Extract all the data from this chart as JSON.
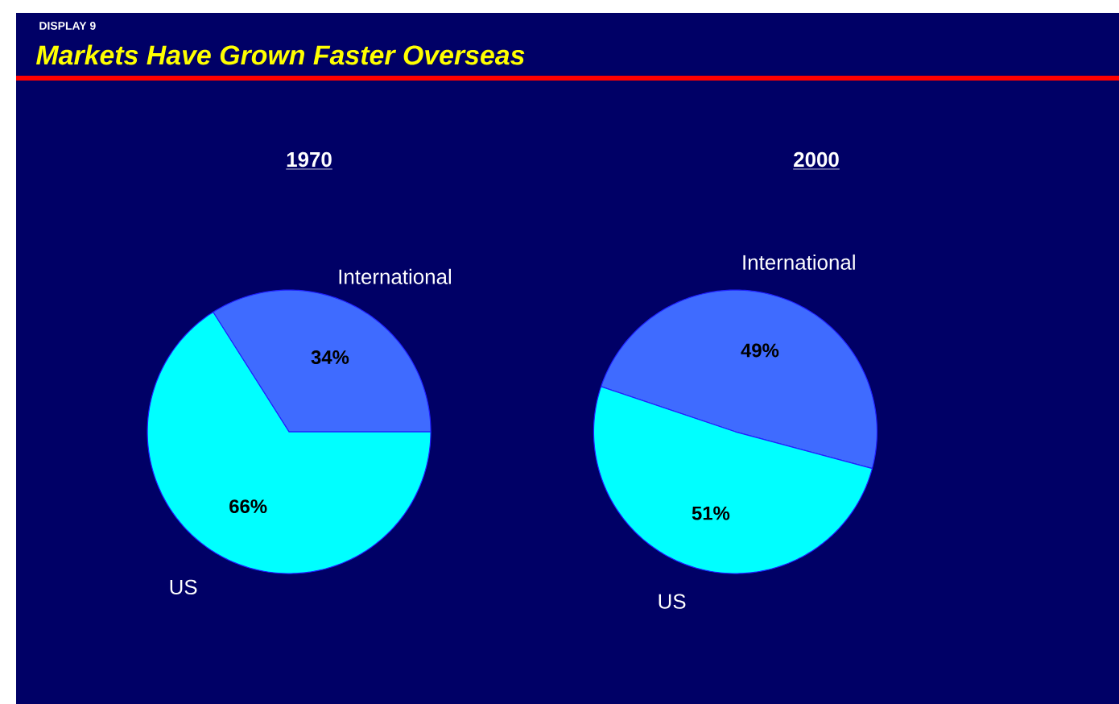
{
  "chart_data": [
    {
      "type": "pie",
      "title": "1970",
      "annotations": [
        "DISPLAY 9",
        "Markets Have Grown Faster Overseas"
      ],
      "categories": [
        "International",
        "US"
      ],
      "values": [
        34,
        66
      ],
      "value_labels": [
        "34%",
        "66%"
      ],
      "colors": [
        "#3f6bff",
        "#00ffff"
      ],
      "legend": false
    },
    {
      "type": "pie",
      "title": "2000",
      "categories": [
        "International",
        "US"
      ],
      "values": [
        49,
        51
      ],
      "value_labels": [
        "49%",
        "51%"
      ],
      "colors": [
        "#3f6bff",
        "#00ffff"
      ],
      "legend": false
    }
  ]
}
